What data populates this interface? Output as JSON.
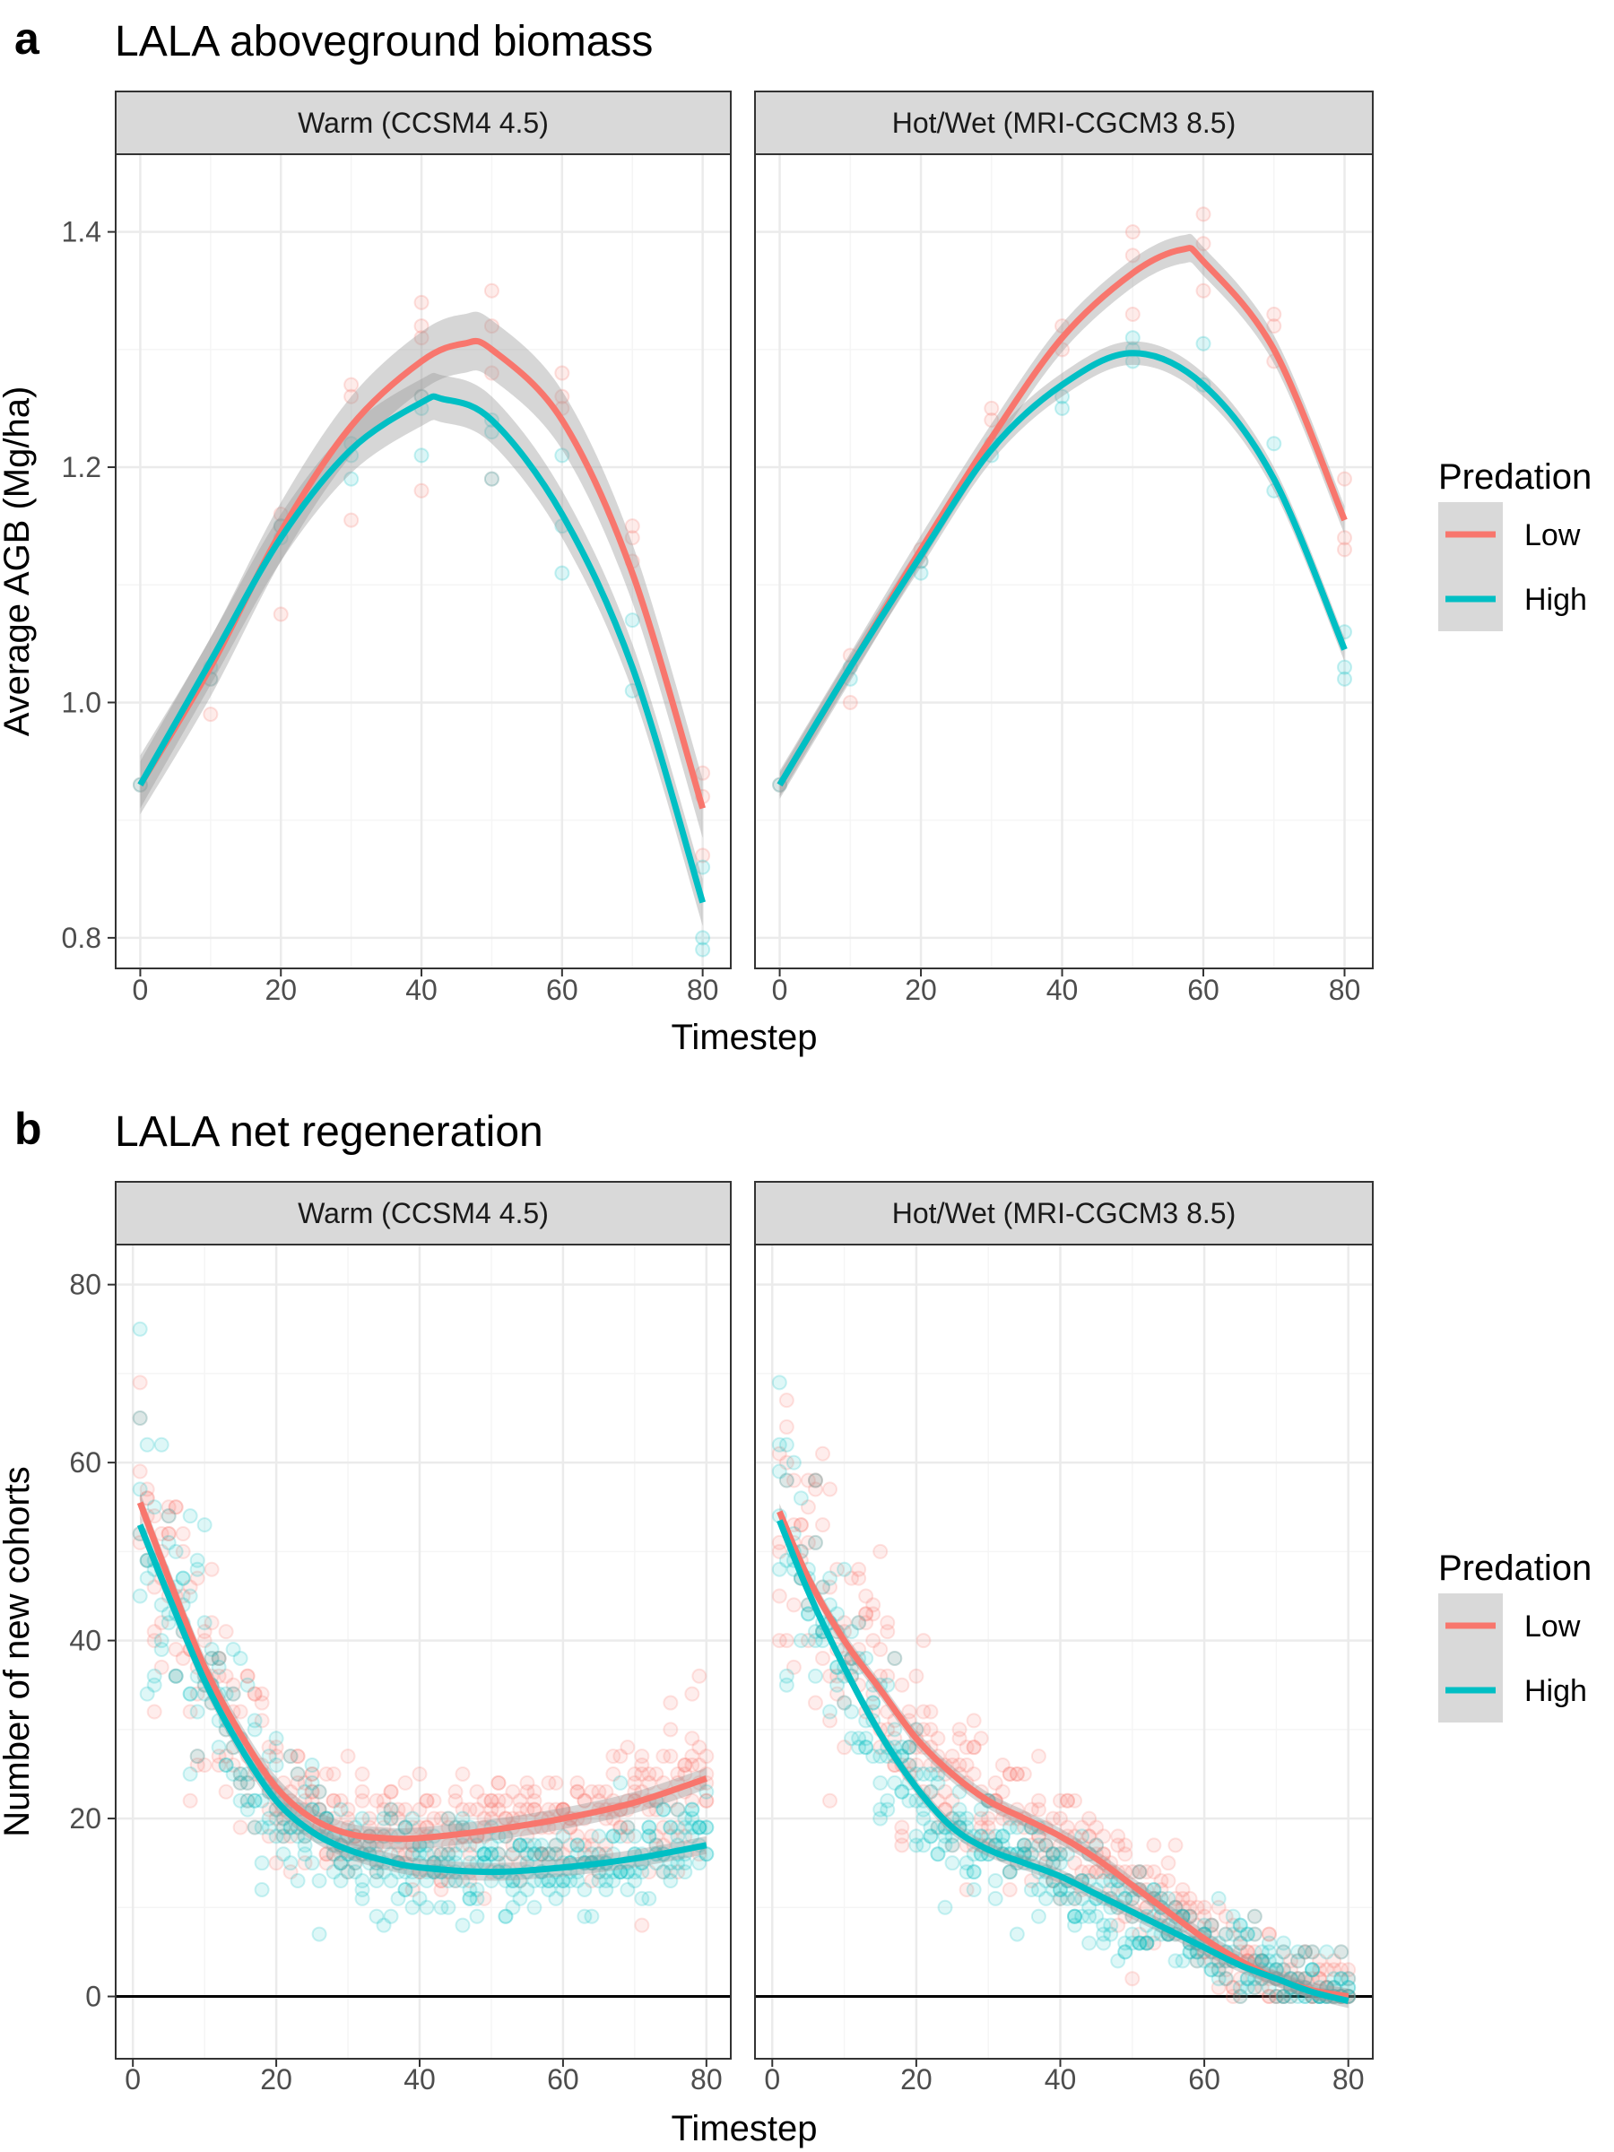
{
  "figure": {
    "panel_a_letter": "a",
    "panel_a_title": "LALA aboveground biomass",
    "panel_b_letter": "b",
    "panel_b_title": "LALA net regeneration"
  },
  "colors": {
    "low": "#F8766D",
    "high": "#00BFC4",
    "ribbon": "#999999",
    "strip_bg": "#D9D9D9",
    "grid_major": "#EBEBEB",
    "grid_minor": "#F5F5F5",
    "frame": "#333333"
  },
  "chart_data": [
    {
      "type": "line",
      "panel": "a",
      "ylabel": "Average AGB (Mg/ha)",
      "xlabel": "Timestep",
      "xlim": [
        -3.5,
        84
      ],
      "ylim": [
        0.774,
        1.466
      ],
      "x_ticks": [
        0,
        20,
        40,
        60,
        80
      ],
      "y_ticks": [
        0.8,
        1.0,
        1.2,
        1.4
      ],
      "y_tick_labels": [
        "0.8",
        "1.0",
        "1.2",
        "1.4"
      ],
      "legend": {
        "title": "Predation",
        "entries": [
          "Low",
          "High"
        ],
        "position": "right"
      },
      "facets": [
        {
          "strip": "Warm (CCSM4 4.5)",
          "series": [
            {
              "name": "Low",
              "x": [
                0,
                10,
                20,
                30,
                40,
                46,
                50,
                60,
                70,
                80
              ],
              "y": [
                0.93,
                1.03,
                1.145,
                1.235,
                1.29,
                1.305,
                1.3,
                1.24,
                1.11,
                0.91
              ],
              "se": 0.025,
              "points_x": [
                0,
                10,
                10,
                20,
                20,
                20,
                30,
                30,
                30,
                40,
                40,
                40,
                40,
                40,
                50,
                50,
                50,
                50,
                60,
                60,
                60,
                70,
                70,
                70,
                80,
                80,
                80
              ],
              "points_y": [
                0.93,
                1.02,
                0.99,
                1.15,
                1.16,
                1.075,
                1.27,
                1.26,
                1.155,
                1.34,
                1.32,
                1.26,
                1.31,
                1.18,
                1.35,
                1.32,
                1.19,
                1.28,
                1.28,
                1.26,
                1.25,
                1.14,
                1.12,
                1.15,
                0.92,
                0.94,
                0.87
              ]
            },
            {
              "name": "High",
              "x": [
                0,
                10,
                20,
                30,
                40,
                43,
                50,
                60,
                70,
                80
              ],
              "y": [
                0.93,
                1.035,
                1.14,
                1.215,
                1.255,
                1.258,
                1.24,
                1.16,
                1.03,
                0.83
              ],
              "se": 0.02,
              "points_x": [
                0,
                10,
                10,
                20,
                20,
                30,
                30,
                30,
                40,
                40,
                40,
                50,
                50,
                50,
                60,
                60,
                60,
                70,
                70,
                80,
                80,
                80
              ],
              "points_y": [
                0.93,
                1.03,
                1.02,
                1.15,
                1.14,
                1.21,
                1.19,
                1.22,
                1.26,
                1.21,
                1.25,
                1.24,
                1.19,
                1.23,
                1.21,
                1.15,
                1.11,
                1.07,
                1.01,
                0.8,
                0.79,
                0.86
              ]
            }
          ]
        },
        {
          "strip": "Hot/Wet (MRI-CGCM3 8.5)",
          "series": [
            {
              "name": "Low",
              "x": [
                0,
                10,
                20,
                30,
                40,
                50,
                57,
                60,
                70,
                80
              ],
              "y": [
                0.93,
                1.03,
                1.13,
                1.225,
                1.31,
                1.365,
                1.385,
                1.375,
                1.3,
                1.155
              ],
              "se": 0.012,
              "points_x": [
                0,
                10,
                10,
                20,
                20,
                30,
                30,
                40,
                40,
                50,
                50,
                50,
                60,
                60,
                60,
                70,
                70,
                70,
                80,
                80,
                80
              ],
              "points_y": [
                0.93,
                1.04,
                1.0,
                1.13,
                1.12,
                1.25,
                1.24,
                1.32,
                1.3,
                1.4,
                1.38,
                1.33,
                1.415,
                1.39,
                1.35,
                1.33,
                1.32,
                1.29,
                1.19,
                1.14,
                1.13
              ]
            },
            {
              "name": "High",
              "x": [
                0,
                10,
                20,
                30,
                40,
                50,
                60,
                70,
                80
              ],
              "y": [
                0.93,
                1.03,
                1.125,
                1.215,
                1.27,
                1.297,
                1.27,
                1.19,
                1.045
              ],
              "se": 0.01,
              "points_x": [
                0,
                10,
                10,
                20,
                20,
                30,
                30,
                40,
                40,
                50,
                50,
                50,
                60,
                60,
                70,
                70,
                80,
                80,
                80
              ],
              "points_y": [
                0.93,
                1.03,
                1.02,
                1.12,
                1.11,
                1.21,
                1.22,
                1.26,
                1.25,
                1.3,
                1.29,
                1.31,
                1.305,
                1.27,
                1.22,
                1.18,
                1.06,
                1.03,
                1.02
              ]
            }
          ]
        }
      ]
    },
    {
      "type": "line",
      "panel": "b",
      "ylabel": "Number of new cohorts",
      "xlabel": "Timestep",
      "xlim": [
        -2.4,
        83.4
      ],
      "ylim": [
        -7,
        84.5
      ],
      "x_ticks": [
        0,
        20,
        40,
        60,
        80
      ],
      "y_ticks": [
        0,
        20,
        40,
        60,
        80
      ],
      "y_tick_labels": [
        "0",
        "20",
        "40",
        "60",
        "80"
      ],
      "hline": 0,
      "legend": {
        "title": "Predation",
        "entries": [
          "Low",
          "High"
        ],
        "position": "right"
      },
      "facets": [
        {
          "strip": "Warm (CCSM4 4.5)",
          "series": [
            {
              "name": "Low",
              "x": [
                1,
                5,
                10,
                15,
                20,
                25,
                30,
                35,
                40,
                50,
                60,
                70,
                80
              ],
              "y": [
                55.5,
                47,
                37,
                29.5,
                23.5,
                20,
                18.3,
                17.8,
                17.8,
                18.7,
                20,
                21.8,
                24.5
              ],
              "se": 1.2
            },
            {
              "name": "High",
              "x": [
                1,
                5,
                10,
                15,
                20,
                25,
                30,
                35,
                40,
                50,
                60,
                70,
                80
              ],
              "y": [
                53,
                45,
                35.5,
                28,
                22,
                18.5,
                16.5,
                15.3,
                14.5,
                14,
                14.5,
                15.5,
                17
              ],
              "se": 1.0
            }
          ]
        },
        {
          "strip": "Hot/Wet (MRI-CGCM3 8.5)",
          "series": [
            {
              "name": "Low",
              "x": [
                1,
                5,
                10,
                15,
                20,
                25,
                30,
                35,
                40,
                45,
                50,
                55,
                60,
                65,
                70,
                75,
                80
              ],
              "y": [
                54.5,
                47,
                40,
                34.5,
                29,
                25,
                22,
                20,
                18,
                15.5,
                12.5,
                9.5,
                6.5,
                4,
                2,
                0.7,
                0
              ],
              "se": 0.9
            },
            {
              "name": "High",
              "x": [
                1,
                5,
                10,
                15,
                20,
                25,
                30,
                35,
                40,
                45,
                50,
                55,
                60,
                65,
                70,
                75,
                80
              ],
              "y": [
                53.5,
                45.5,
                37,
                29.5,
                23.5,
                19,
                16.5,
                15,
                13.5,
                11.5,
                9.5,
                7.5,
                5.5,
                3.5,
                2,
                0.5,
                -0.5
              ],
              "se": 0.8
            }
          ]
        }
      ]
    }
  ]
}
